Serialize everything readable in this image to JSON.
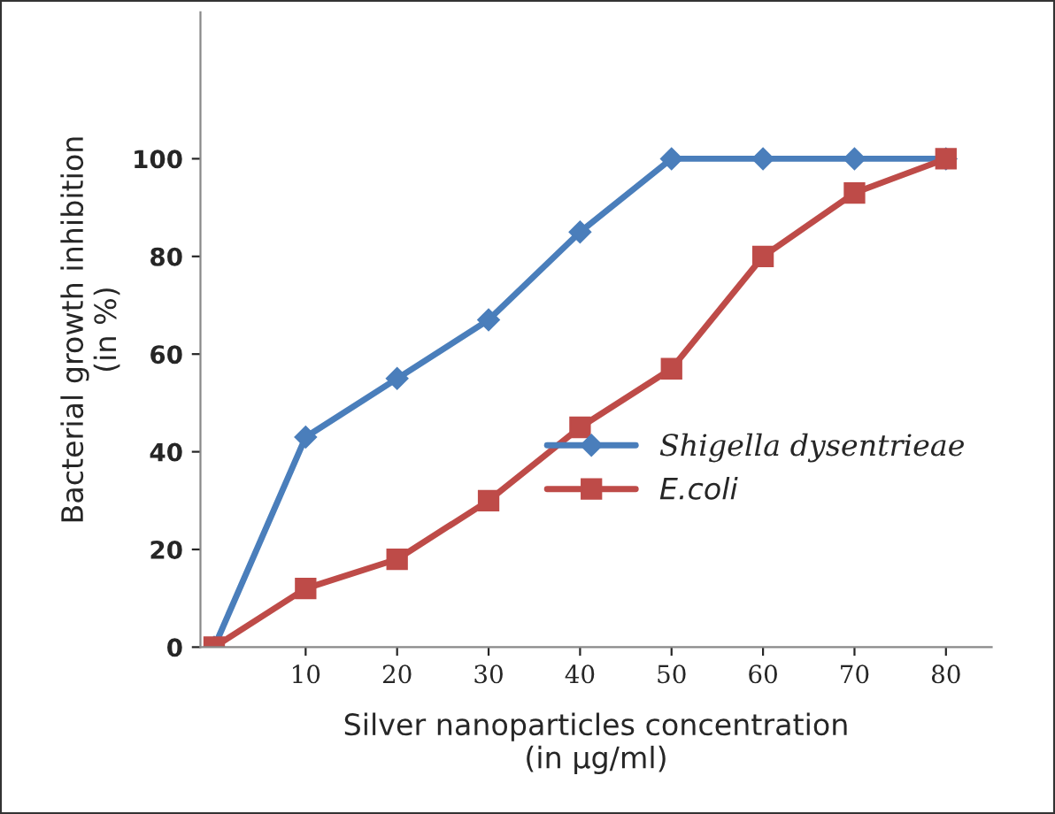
{
  "chart_data": {
    "type": "line",
    "xlabel": "Silver nanoparticles concentration\n(in µg/ml)",
    "ylabel": "Bacterial growth inhibition\n(in %)",
    "x": [
      0,
      10,
      20,
      30,
      40,
      50,
      60,
      70,
      80
    ],
    "series": [
      {
        "name": "Shigella dysentrieae",
        "color": "#4a7ebb",
        "marker": "diamond",
        "values": [
          0,
          43,
          55,
          67,
          85,
          100,
          100,
          100,
          100
        ]
      },
      {
        "name": "E.coli",
        "color": "#be4b48",
        "marker": "square",
        "values": [
          0,
          12,
          18,
          30,
          45,
          57,
          80,
          93,
          100
        ]
      }
    ],
    "xlim": [
      -1.5,
      85
    ],
    "xticks": [
      10,
      20,
      30,
      40,
      50,
      60,
      70,
      80
    ],
    "ylim": [
      0,
      130
    ],
    "yticks": [
      0,
      20,
      40,
      60,
      80,
      100
    ],
    "grid": false,
    "legend": "right",
    "line_style": "solid"
  }
}
